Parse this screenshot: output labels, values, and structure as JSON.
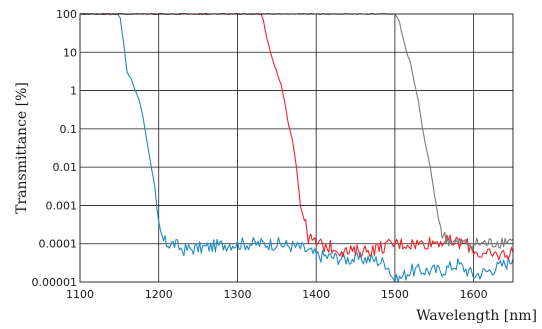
{
  "chart_data": {
    "type": "line",
    "title": "",
    "xlabel": "Wavelength [nm]",
    "ylabel": "Transmittance [%]",
    "xlim": [
      1100,
      1650
    ],
    "ylim": [
      1e-05,
      100
    ],
    "yscale": "log",
    "grid": true,
    "legend": "none",
    "x_ticks": [
      1100,
      1200,
      1300,
      1400,
      1500,
      1600
    ],
    "x_tick_labels": [
      "1100",
      "1200",
      "1300",
      "1400",
      "1500",
      "1600"
    ],
    "y_ticks": [
      100,
      10,
      1,
      0.1,
      0.01,
      0.001,
      0.0001,
      1e-05
    ],
    "y_tick_labels": [
      "100",
      "10",
      "1",
      "0.1",
      "0.01",
      "0.001",
      "0.0001",
      "0.00001"
    ],
    "series": [
      {
        "color": "#1f8ac2",
        "x": [
          1100,
          1148,
          1151,
          1155,
          1160,
          1165,
          1170,
          1175,
          1180,
          1185,
          1190,
          1195,
          1198,
          1202,
          1206,
          1210,
          1215,
          1220,
          1230,
          1260,
          1290,
          1320,
          1350,
          1380,
          1400,
          1440,
          1470,
          1490,
          1500,
          1520,
          1540,
          1560,
          1580,
          1600,
          1620,
          1640,
          1650
        ],
        "y": [
          100,
          100,
          80,
          20,
          3,
          2,
          1,
          0.6,
          0.2,
          0.05,
          0.012,
          0.003,
          0.0007,
          0.0002,
          0.00012,
          0.0001,
          0.0001,
          0.0001,
          7e-05,
          8e-05,
          0.0001,
          0.0001,
          0.0001,
          8e-05,
          5e-05,
          4e-05,
          4e-05,
          3e-05,
          1e-05,
          2e-05,
          2e-05,
          2e-05,
          3e-05,
          1.5e-05,
          2e-05,
          3e-05,
          4e-05
        ]
      },
      {
        "color": "#e8262a",
        "x": [
          1100,
          1330,
          1333,
          1337,
          1342,
          1346,
          1350,
          1355,
          1360,
          1365,
          1370,
          1375,
          1380,
          1385,
          1390,
          1395,
          1400,
          1420,
          1440,
          1470,
          1500,
          1530,
          1560,
          1590,
          1610,
          1630,
          1650
        ],
        "y": [
          100,
          100,
          70,
          25,
          10,
          5,
          3,
          1.5,
          0.5,
          0.12,
          0.05,
          0.01,
          0.001,
          0.0004,
          0.00015,
          0.00012,
          0.0001,
          8e-05,
          6e-05,
          7e-05,
          0.0001,
          0.0001,
          0.00012,
          0.0001,
          5e-05,
          5e-05,
          6e-05
        ]
      },
      {
        "color": "#7b7b7b",
        "x": [
          1100,
          1500,
          1505,
          1510,
          1515,
          1520,
          1525,
          1530,
          1535,
          1540,
          1545,
          1550,
          1555,
          1560,
          1565,
          1570,
          1580,
          1600,
          1620,
          1640,
          1650
        ],
        "y": [
          100,
          100,
          70,
          25,
          10,
          5,
          1.5,
          0.5,
          0.1,
          0.03,
          0.01,
          0.002,
          0.0005,
          0.00018,
          0.00013,
          0.00012,
          0.0001,
          0.0001,
          0.0001,
          0.00012,
          0.00013
        ]
      }
    ]
  }
}
